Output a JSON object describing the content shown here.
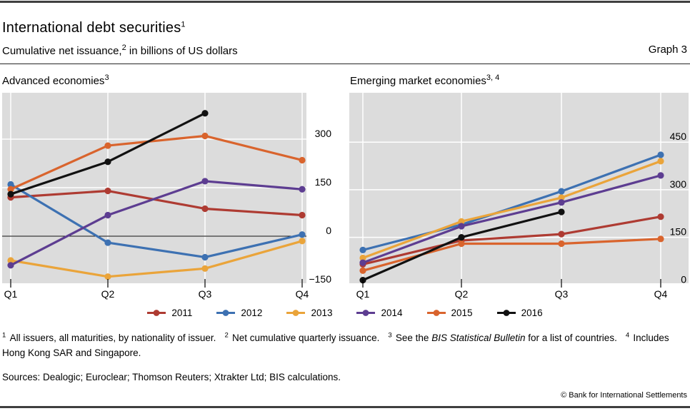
{
  "header": {
    "title": "International debt securities",
    "title_sup": "1",
    "subtitle_pre": "Cumulative net issuance,",
    "subtitle_sup": "2",
    "subtitle_post": " in billions of US dollars",
    "graph_label": "Graph 3"
  },
  "panels": [
    {
      "title": "Advanced economies",
      "title_sup": "3"
    },
    {
      "title": "Emerging market economies",
      "title_sup": "3, 4"
    }
  ],
  "colors": {
    "plot_background": "#dcdcdc",
    "gridline": "#ffffff",
    "zero_line": "#000000",
    "rule": "#3f3f3f"
  },
  "chart_data": [
    {
      "type": "line",
      "title": "Advanced economies",
      "x": [
        "Q1",
        "Q2",
        "Q3",
        "Q4"
      ],
      "ylabel": "billions of US dollars",
      "ylim": [
        -150,
        440
      ],
      "yticks": [
        300,
        150,
        0,
        -150
      ],
      "grid": true,
      "series": [
        {
          "name": "2011",
          "color": "#ae3b32",
          "values": [
            120,
            140,
            85,
            65
          ]
        },
        {
          "name": "2012",
          "color": "#3d71b2",
          "values": [
            160,
            -20,
            -65,
            5
          ]
        },
        {
          "name": "2013",
          "color": "#eaa43a",
          "values": [
            -75,
            -125,
            -100,
            -15
          ]
        },
        {
          "name": "2014",
          "color": "#5d3d91",
          "values": [
            -90,
            65,
            170,
            145
          ]
        },
        {
          "name": "2015",
          "color": "#d9642d",
          "values": [
            145,
            280,
            310,
            235
          ]
        },
        {
          "name": "2016",
          "color": "#111111",
          "values": [
            130,
            230,
            380,
            null
          ]
        }
      ]
    },
    {
      "type": "line",
      "title": "Emerging market economies",
      "x": [
        "Q1",
        "Q2",
        "Q3",
        "Q4"
      ],
      "ylabel": "billions of US dollars",
      "ylim": [
        0,
        600
      ],
      "yticks": [
        450,
        300,
        150,
        0
      ],
      "grid": true,
      "series": [
        {
          "name": "2011",
          "color": "#ae3b32",
          "values": [
            65,
            140,
            160,
            215
          ]
        },
        {
          "name": "2012",
          "color": "#3d71b2",
          "values": [
            110,
            190,
            295,
            410
          ]
        },
        {
          "name": "2013",
          "color": "#eaa43a",
          "values": [
            85,
            200,
            275,
            390
          ]
        },
        {
          "name": "2014",
          "color": "#5d3d91",
          "values": [
            70,
            185,
            260,
            345
          ]
        },
        {
          "name": "2015",
          "color": "#d9642d",
          "values": [
            45,
            130,
            130,
            145
          ]
        },
        {
          "name": "2016",
          "color": "#111111",
          "values": [
            15,
            150,
            230,
            null
          ]
        }
      ]
    }
  ],
  "footnotes": {
    "items": [
      {
        "sup": "1",
        "text": "All issuers, all maturities, by nationality of issuer."
      },
      {
        "sup": "2",
        "text": "Net cumulative quarterly issuance."
      },
      {
        "sup": "3",
        "pre": "See the ",
        "italic": "BIS Statistical Bulletin",
        "post": " for a list of countries."
      },
      {
        "sup": "4",
        "text": "Includes Hong Kong SAR and Singapore."
      }
    ]
  },
  "sources": "Sources: Dealogic; Euroclear; Thomson Reuters; Xtrakter Ltd; BIS calculations.",
  "copyright": "© Bank for International Settlements"
}
